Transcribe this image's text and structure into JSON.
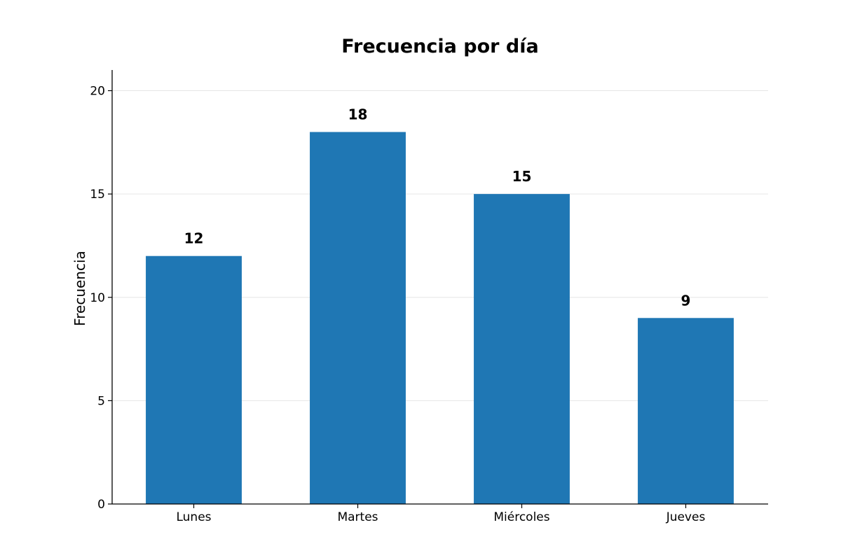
{
  "chart_data": {
    "type": "bar",
    "title": "Frecuencia por día",
    "xlabel": "",
    "ylabel": "Frecuencia",
    "categories": [
      "Lunes",
      "Martes",
      "Miércoles",
      "Jueves"
    ],
    "values": [
      12,
      18,
      15,
      9
    ],
    "data_labels": [
      "12",
      "18",
      "15",
      "9"
    ],
    "ylim": [
      0,
      21
    ],
    "yticks": [
      0,
      5,
      10,
      15,
      20
    ],
    "ytick_labels": [
      "0",
      "5",
      "10",
      "15",
      "20"
    ],
    "grid": "horizontal",
    "bar_color": "#1f77b4",
    "grid_color": "#e6e6e6",
    "axis_color": "#000000"
  }
}
